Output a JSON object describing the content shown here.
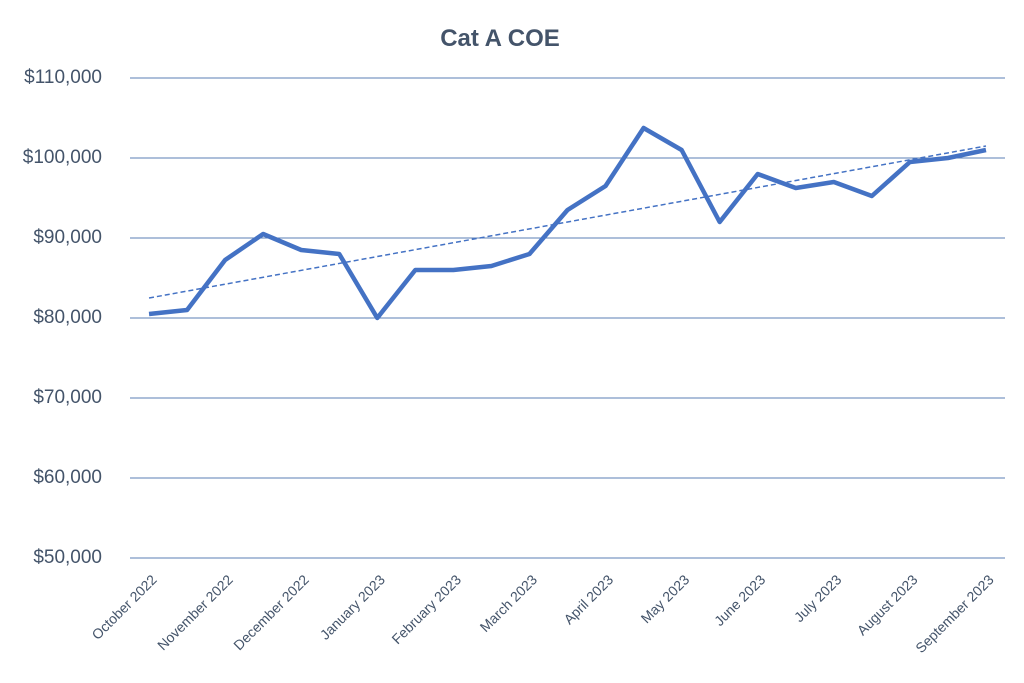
{
  "chart_data": {
    "type": "line",
    "title": "Cat A COE",
    "categories": [
      "October 2022",
      null,
      "November 2022",
      null,
      "December 2022",
      null,
      "January 2023",
      null,
      "February 2023",
      null,
      "March 2023",
      null,
      "April 2023",
      null,
      "May 2023",
      null,
      "June 2023",
      null,
      "July 2023",
      null,
      "August 2023",
      null,
      "September 2023"
    ],
    "series": [
      {
        "color": "#4472c4",
        "values": [
          80500,
          81000,
          87250,
          90500,
          88500,
          88000,
          80000,
          86000,
          86000,
          86500,
          88000,
          93500,
          96500,
          103750,
          101000,
          92000,
          98000,
          96250,
          97000,
          95250,
          99500,
          100000,
          101000
        ]
      }
    ],
    "trendline": {
      "start": 82500,
      "end": 101500,
      "color": "#4472c4",
      "dashed": true
    },
    "ylim": [
      50000,
      110000
    ],
    "yticks": [
      {
        "value": 50000,
        "label": "$50,000"
      },
      {
        "value": 60000,
        "label": "$60,000"
      },
      {
        "value": 70000,
        "label": "$70,000"
      },
      {
        "value": 80000,
        "label": "$80,000"
      },
      {
        "value": 90000,
        "label": "$90,000"
      },
      {
        "value": 100000,
        "label": "$100,000"
      },
      {
        "value": 110000,
        "label": "$110,000"
      }
    ],
    "grid": true
  }
}
